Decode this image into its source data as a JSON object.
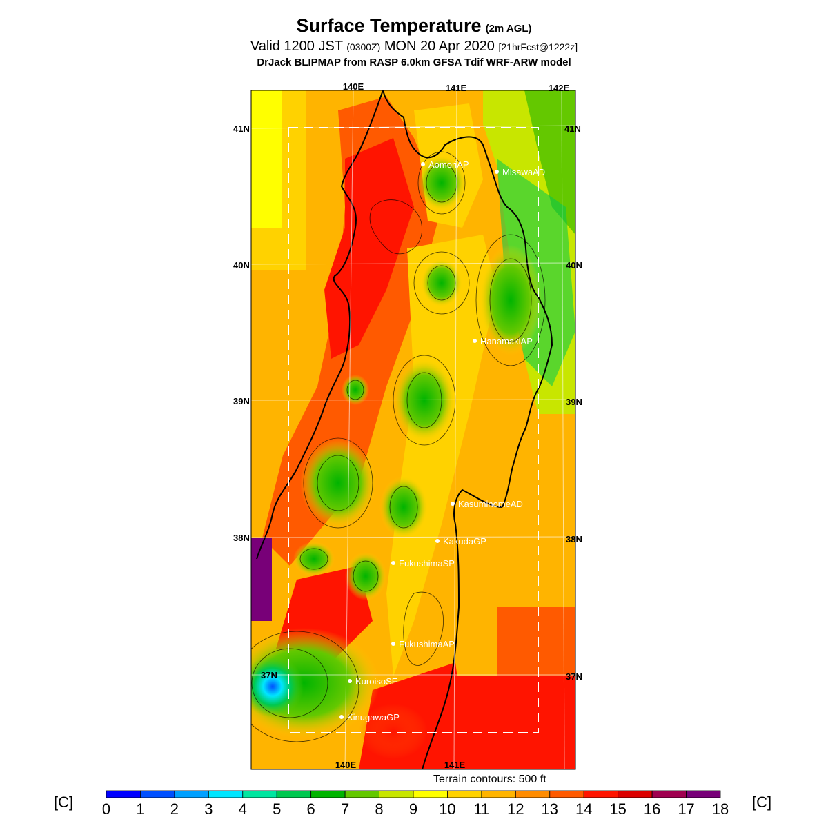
{
  "title": {
    "main": "Surface Temperature",
    "main_suffix": "(2m AGL)",
    "valid_prefix": "Valid 1200 JST",
    "valid_zulu": "(0300Z)",
    "valid_date": "MON 20 Apr 2020",
    "forecast": "[21hrFcst@1222z]",
    "model": "DrJack BLIPMAP from RASP 6.0km GFSA Tdif WRF-ARW model"
  },
  "axes": {
    "lon_labels": [
      "140E",
      "141E",
      "142E"
    ],
    "lat_labels": [
      "41N",
      "40N",
      "39N",
      "38N",
      "37N"
    ]
  },
  "stations": [
    {
      "name": "AomoriAP"
    },
    {
      "name": "MisawaAD"
    },
    {
      "name": "HanamakiAP"
    },
    {
      "name": "KasuminomeAD"
    },
    {
      "name": "KakudaGP"
    },
    {
      "name": "FukushimaSP"
    },
    {
      "name": "FukushimaAP"
    },
    {
      "name": "KuroisoSF"
    },
    {
      "name": "KinugawaGP"
    }
  ],
  "terrain_note": "Terrain contours: 500 ft",
  "colorbar": {
    "unit": "[C]",
    "ticks": [
      "0",
      "1",
      "2",
      "3",
      "4",
      "5",
      "6",
      "7",
      "8",
      "9",
      "10",
      "11",
      "12",
      "13",
      "14",
      "15",
      "16",
      "17",
      "18"
    ],
    "colors": [
      "#0000ff",
      "#0050ff",
      "#00a0ff",
      "#00e6ff",
      "#00e6a0",
      "#00c850",
      "#00b400",
      "#64c800",
      "#c8e600",
      "#ffff00",
      "#ffd200",
      "#ffb400",
      "#ff8c00",
      "#ff5a00",
      "#ff1400",
      "#dc0000",
      "#a00050",
      "#780078"
    ]
  }
}
